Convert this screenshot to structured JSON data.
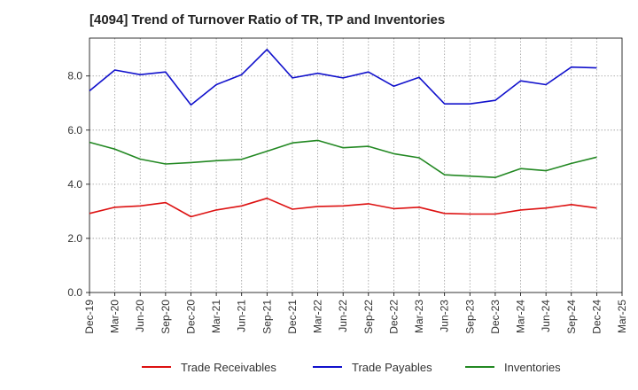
{
  "chart_data": {
    "type": "line",
    "title": "[4094]  Trend of Turnover Ratio of TR, TP and Inventories",
    "xlabel": "",
    "ylabel": "",
    "ylim": [
      0,
      9.4
    ],
    "y_ticks": [
      "0.0",
      "2.0",
      "4.0",
      "6.0",
      "8.0"
    ],
    "y_tick_values": [
      0,
      2,
      4,
      6,
      8
    ],
    "x_tick_labels": [
      "Dec-19",
      "Mar-20",
      "Jun-20",
      "Sep-20",
      "Dec-20",
      "Mar-21",
      "Jun-21",
      "Sep-21",
      "Dec-21",
      "Mar-22",
      "Jun-22",
      "Sep-22",
      "Dec-22",
      "Mar-23",
      "Jun-23",
      "Sep-23",
      "Dec-23",
      "Mar-24",
      "Jun-24",
      "Sep-24",
      "Dec-24",
      "Mar-25"
    ],
    "x": [
      "Dec-19",
      "Mar-20",
      "Jun-20",
      "Sep-20",
      "Dec-20",
      "Mar-21",
      "Jun-21",
      "Sep-21",
      "Dec-21",
      "Mar-22",
      "Jun-22",
      "Sep-22",
      "Dec-22",
      "Mar-23",
      "Jun-23",
      "Sep-23",
      "Dec-23",
      "Mar-24",
      "Jun-24",
      "Sep-24",
      "Dec-24"
    ],
    "grid": true,
    "legend_position": "bottom",
    "series": [
      {
        "name": "Trade Receivables",
        "color": "#dd1111",
        "values": [
          2.92,
          3.15,
          3.2,
          3.32,
          2.8,
          3.05,
          3.2,
          3.48,
          3.08,
          3.18,
          3.2,
          3.28,
          3.1,
          3.15,
          2.92,
          2.9,
          2.9,
          3.05,
          3.12,
          3.25,
          3.12
        ]
      },
      {
        "name": "Trade Payables",
        "color": "#1111cc",
        "values": [
          7.45,
          8.22,
          8.05,
          8.15,
          6.93,
          7.68,
          8.05,
          8.98,
          7.93,
          8.1,
          7.93,
          8.15,
          7.62,
          7.95,
          6.97,
          6.97,
          7.1,
          7.82,
          7.68,
          8.33,
          8.3
        ]
      },
      {
        "name": "Inventories",
        "color": "#228822",
        "values": [
          5.55,
          5.3,
          4.93,
          4.75,
          4.8,
          4.87,
          4.92,
          5.22,
          5.53,
          5.62,
          5.35,
          5.4,
          5.13,
          4.98,
          4.35,
          4.3,
          4.25,
          4.58,
          4.5,
          4.77,
          5.0
        ]
      }
    ]
  }
}
